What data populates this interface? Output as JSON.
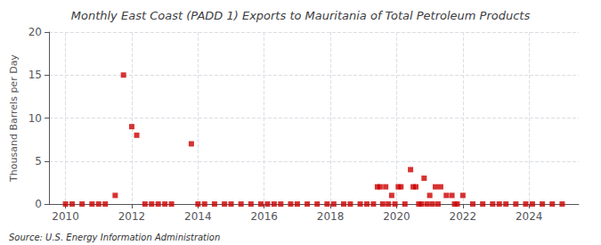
{
  "chart_data": {
    "type": "scatter",
    "title": "Monthly East Coast (PADD 1) Exports to Mauritania of Total Petroleum Products",
    "ylabel": "Thousand Barrels per Day",
    "annotations": [
      "Source: U.S. Energy Information Administration"
    ],
    "color": "#cc0000",
    "marker": "square",
    "grid": true,
    "xlim": [
      2009.5,
      2025.5
    ],
    "xticks": [
      2010,
      2012,
      2014,
      2016,
      2018,
      2020,
      2022,
      2024
    ],
    "ylim": [
      0,
      20
    ],
    "yticks": [
      0,
      5,
      10,
      15,
      20
    ],
    "x": [
      2010.0,
      2010.2,
      2010.5,
      2010.8,
      2011.0,
      2011.2,
      2011.5,
      2011.75,
      2012.0,
      2012.15,
      2012.4,
      2012.6,
      2012.8,
      2013.0,
      2013.2,
      2013.8,
      2014.0,
      2014.2,
      2014.5,
      2014.8,
      2015.0,
      2015.3,
      2015.6,
      2015.9,
      2016.1,
      2016.3,
      2016.5,
      2016.8,
      2017.0,
      2017.3,
      2017.6,
      2017.9,
      2018.1,
      2018.4,
      2018.6,
      2018.9,
      2019.1,
      2019.3,
      2019.42,
      2019.5,
      2019.58,
      2019.67,
      2019.75,
      2019.85,
      2019.95,
      2020.05,
      2020.13,
      2020.25,
      2020.42,
      2020.5,
      2020.58,
      2020.67,
      2020.75,
      2020.83,
      2020.92,
      2021.0,
      2021.08,
      2021.17,
      2021.25,
      2021.33,
      2021.5,
      2021.67,
      2021.75,
      2021.83,
      2022.0,
      2022.3,
      2022.6,
      2022.9,
      2023.1,
      2023.3,
      2023.6,
      2023.9,
      2024.1,
      2024.4,
      2024.7,
      2025.0
    ],
    "values": [
      0.0,
      0.0,
      0.0,
      0.0,
      0.0,
      0.0,
      1.0,
      15.0,
      9.0,
      8.0,
      0.0,
      0.0,
      0.0,
      0.0,
      0.0,
      7.0,
      0.0,
      0.0,
      0.0,
      0.0,
      0.0,
      0.0,
      0.0,
      0.0,
      0.0,
      0.0,
      0.0,
      0.0,
      0.0,
      0.0,
      0.0,
      0.0,
      0.0,
      0.0,
      0.0,
      0.0,
      0.0,
      0.0,
      2.0,
      2.0,
      0.0,
      2.0,
      0.0,
      1.0,
      0.0,
      2.0,
      2.0,
      0.0,
      4.0,
      2.0,
      2.0,
      0.0,
      0.0,
      3.0,
      0.0,
      1.0,
      0.0,
      2.0,
      0.0,
      2.0,
      1.0,
      1.0,
      0.0,
      0.0,
      1.0,
      0.0,
      0.0,
      0.0,
      0.0,
      0.0,
      0.0,
      0.0,
      0.0,
      0.0,
      0.0,
      0.0
    ]
  }
}
